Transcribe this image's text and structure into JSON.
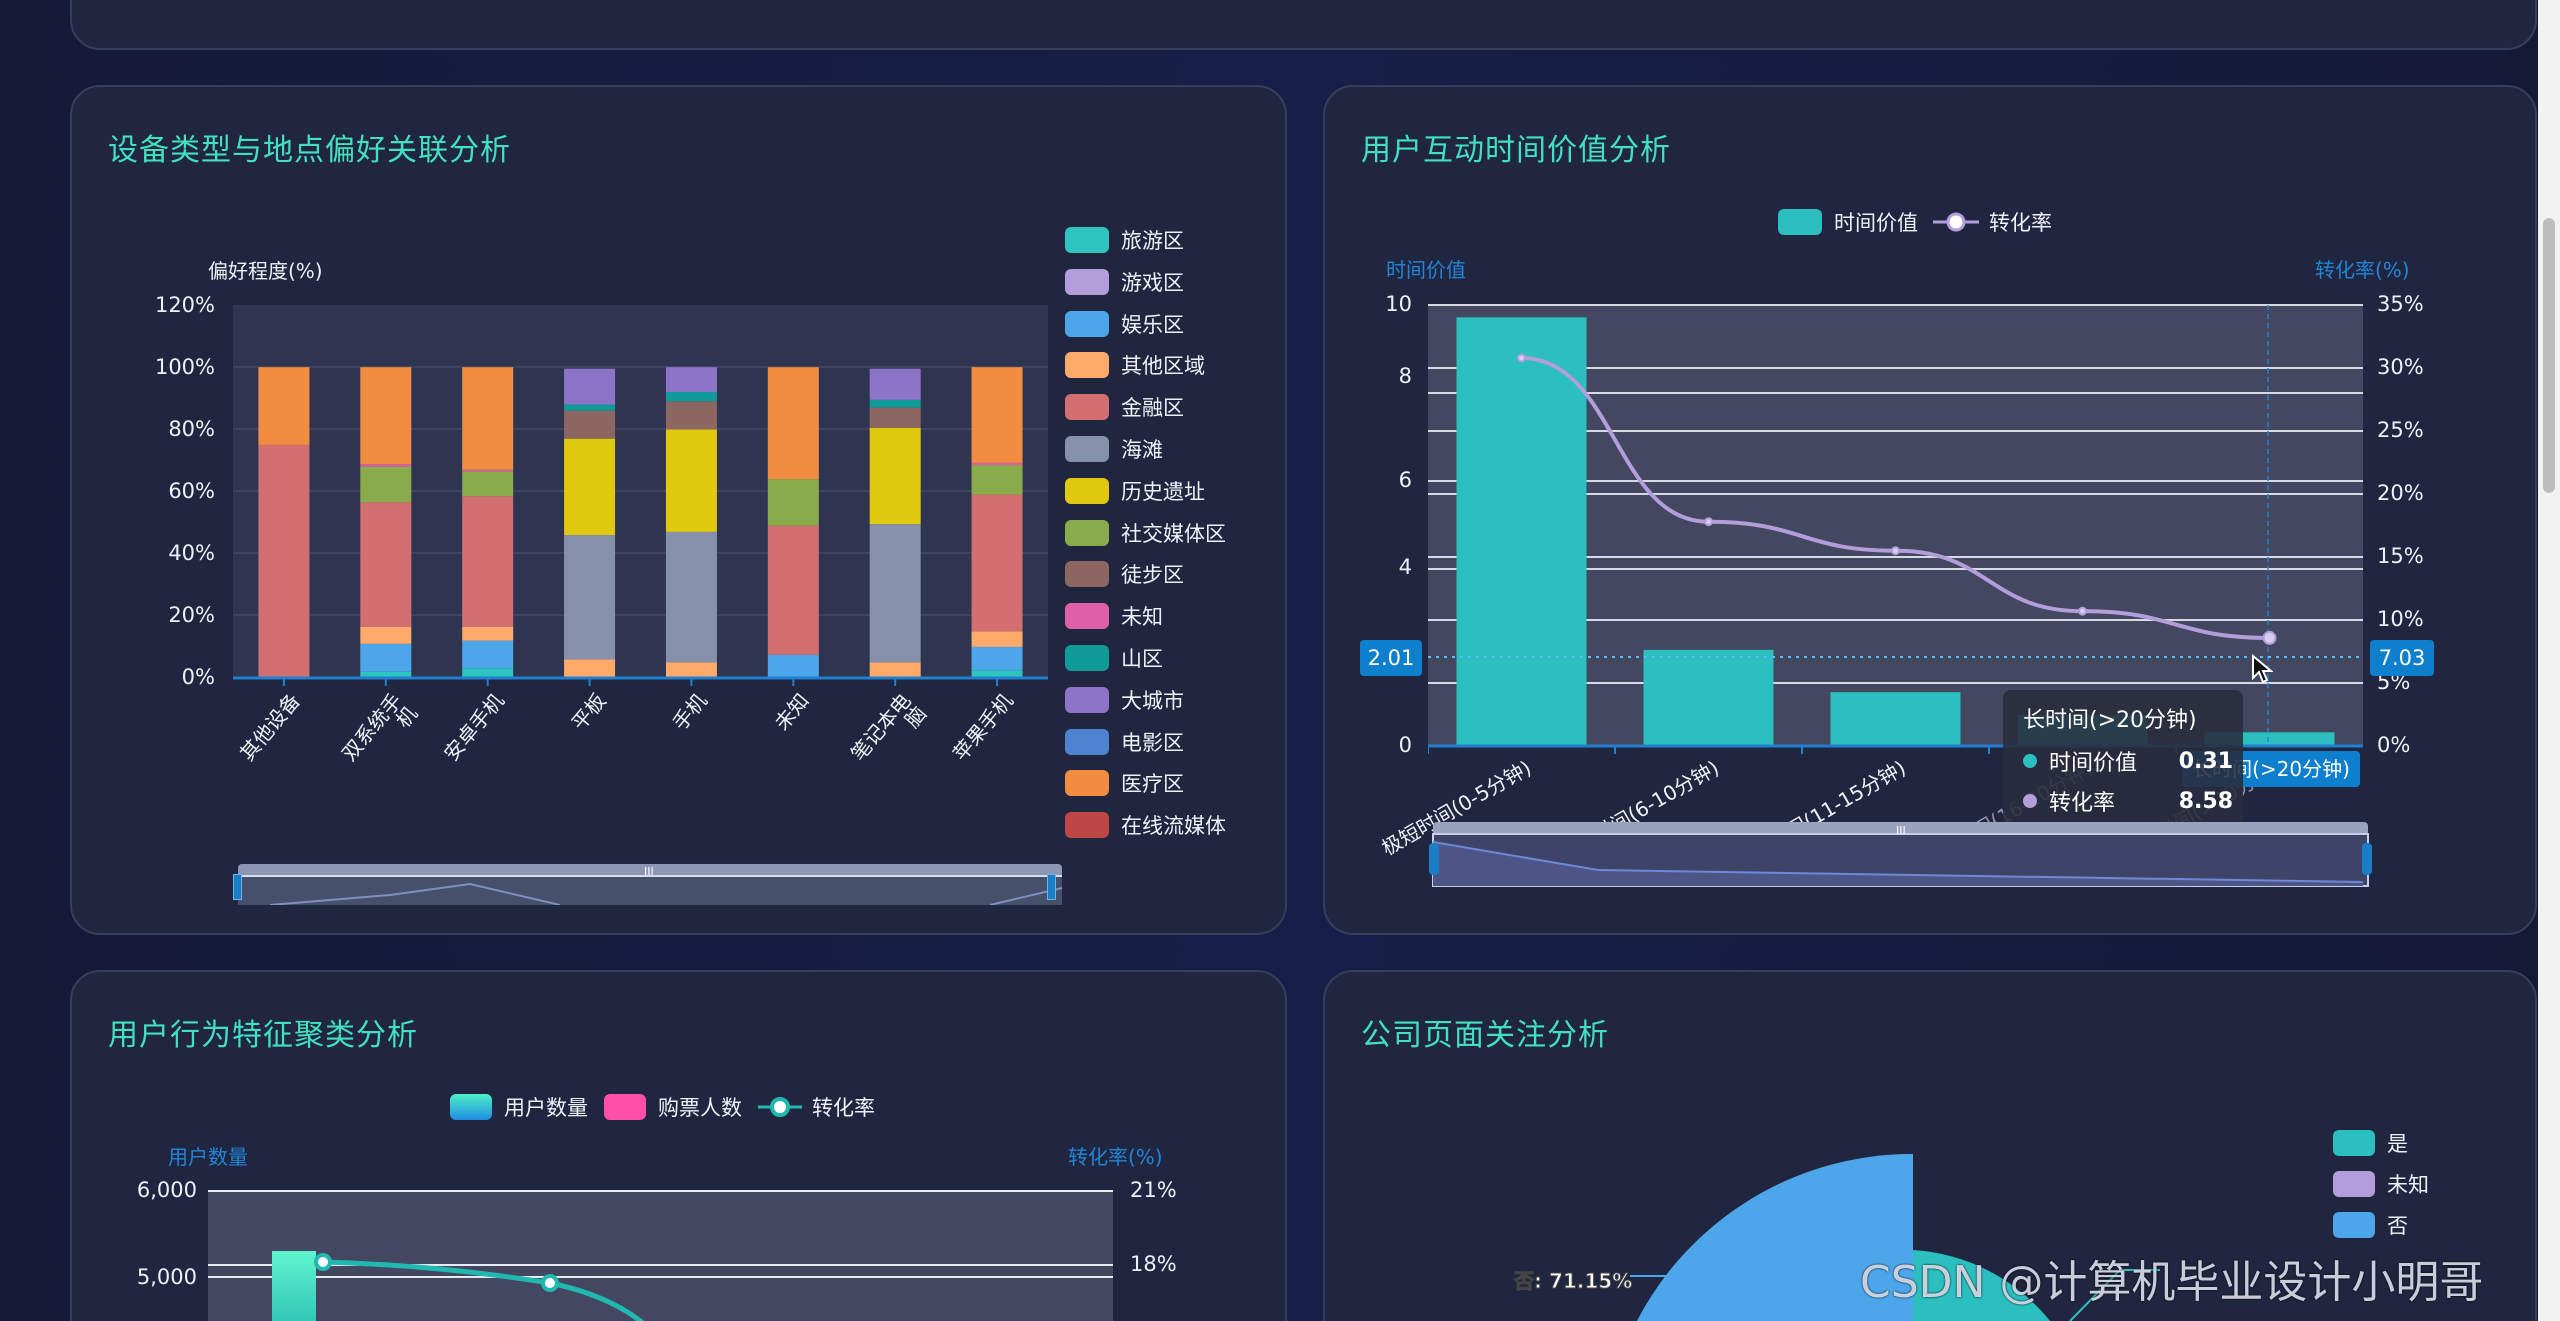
{
  "cards": {
    "device_location": {
      "title": "设备类型与地点偏好关联分析"
    },
    "interaction_time": {
      "title": "用户互动时间价值分析"
    },
    "behavior_cluster": {
      "title": "用户行为特征聚类分析"
    },
    "company_page": {
      "title": "公司页面关注分析"
    }
  },
  "chart_data": [
    {
      "id": "device_location",
      "type": "bar",
      "stacked": true,
      "title": "设备类型与地点偏好关联分析",
      "ylabel": "偏好程度(%)",
      "ylim": [
        0,
        120
      ],
      "yticks": [
        "0%",
        "20%",
        "40%",
        "60%",
        "80%",
        "100%",
        "120%"
      ],
      "categories": [
        "其他设备",
        "双系统手机",
        "安卓手机",
        "平板",
        "手机",
        "未知",
        "笔记本电脑",
        "苹果手机"
      ],
      "legend_position": "right",
      "series": [
        {
          "name": "旅游区",
          "color": "#2ec4c0",
          "values": [
            0,
            2,
            3,
            0,
            0,
            0,
            0,
            2.5
          ]
        },
        {
          "name": "游戏区",
          "color": "#b39ddb",
          "values": [
            0,
            0,
            0,
            0,
            0,
            0,
            0,
            0
          ]
        },
        {
          "name": "娱乐区",
          "color": "#4ea6ea",
          "values": [
            0,
            9,
            9,
            0,
            0,
            7.5,
            0,
            7.5
          ]
        },
        {
          "name": "其他区域",
          "color": "#ffa96b",
          "values": [
            0,
            5.5,
            4.5,
            6,
            5,
            0,
            5,
            5
          ]
        },
        {
          "name": "金融区",
          "color": "#d36f70",
          "values": [
            75,
            40,
            42,
            0,
            0,
            41.5,
            0,
            44
          ]
        },
        {
          "name": "海滩",
          "color": "#8590aa",
          "values": [
            0,
            0,
            0,
            40,
            42,
            0,
            44.5,
            0
          ]
        },
        {
          "name": "历史遗址",
          "color": "#e0c80e",
          "values": [
            0,
            0,
            0,
            31,
            33,
            0,
            31,
            0
          ]
        },
        {
          "name": "社交媒体区",
          "color": "#8aab4b",
          "values": [
            0,
            11.5,
            8,
            0,
            0,
            15,
            0,
            9.5
          ]
        },
        {
          "name": "徒步区",
          "color": "#8c6660",
          "values": [
            0,
            0,
            0,
            9,
            9,
            0,
            6.5,
            0
          ]
        },
        {
          "name": "未知",
          "color": "#e05fa8",
          "values": [
            0,
            0.8,
            0.5,
            0,
            0,
            0,
            0,
            0.7
          ]
        },
        {
          "name": "山区",
          "color": "#109a98",
          "values": [
            0,
            0,
            0,
            2,
            3,
            0,
            2.5,
            0
          ]
        },
        {
          "name": "大城市",
          "color": "#8d74c9",
          "values": [
            0,
            0,
            0,
            11.5,
            8,
            0,
            10,
            0
          ]
        },
        {
          "name": "电影区",
          "color": "#4f82d0",
          "values": [
            0,
            0,
            0,
            0,
            0,
            0,
            0,
            0
          ]
        },
        {
          "name": "医疗区",
          "color": "#f28c40",
          "values": [
            25,
            31.2,
            33,
            0,
            0,
            36,
            0,
            30.8
          ]
        },
        {
          "name": "在线流媒体",
          "color": "#be4646",
          "values": [
            0,
            0,
            0,
            0,
            0,
            0,
            0,
            0
          ]
        }
      ],
      "datazoom": {
        "start": 0,
        "end": 100
      }
    },
    {
      "id": "interaction_time",
      "type": "bar+line",
      "title": "用户互动时间价值分析",
      "categories": [
        "极短时间(0-5分钟)",
        "短时间(6-10分钟)",
        "中等时间(11-15分钟)",
        "较长时间(16-20分钟)",
        "长时间(>20分钟)"
      ],
      "legend_position": "top",
      "y_left": {
        "name": "时间价值",
        "ylim": [
          0,
          10
        ],
        "ticks": [
          "0",
          "2",
          "4",
          "6",
          "8",
          "10"
        ]
      },
      "y_right": {
        "name": "转化率(%)",
        "ylim": [
          0,
          35
        ],
        "ticks": [
          "0%",
          "5%",
          "10%",
          "15%",
          "20%",
          "25%",
          "30%",
          "35%"
        ]
      },
      "series": [
        {
          "name": "时间价值",
          "type": "bar",
          "color": "#2bbfbf",
          "values": [
            9.72,
            2.18,
            1.22,
            0.7,
            0.31
          ]
        },
        {
          "name": "转化率",
          "type": "line",
          "color": "#b39ddb",
          "values": [
            30.8,
            17.8,
            15.5,
            10.7,
            8.58
          ]
        }
      ],
      "axis_pointer": {
        "left_value": "2.01",
        "right_value": "7.03",
        "category_label": "长时间(>20分钟)"
      },
      "tooltip": {
        "title": "长时间(>20分钟)",
        "rows": [
          {
            "label": "时间价值",
            "value": "0.31",
            "color": "#2bbfbf"
          },
          {
            "label": "转化率",
            "value": "8.58",
            "color": "#b39ddb"
          }
        ]
      },
      "datazoom": {
        "start": 0,
        "end": 100
      }
    },
    {
      "id": "behavior_cluster",
      "type": "bar+line",
      "title": "用户行为特征聚类分析",
      "legend_position": "top",
      "y_left": {
        "name": "用户数量",
        "ticks_visible": [
          "5,000",
          "6,000"
        ]
      },
      "y_right": {
        "name": "转化率(%)",
        "ticks_visible": [
          "18%",
          "21%"
        ]
      },
      "series": [
        {
          "name": "用户数量",
          "type": "bar",
          "color": "#4ef0c8",
          "values_visible": [
            5300
          ]
        },
        {
          "name": "购票人数",
          "type": "bar",
          "color": "#ff4fa8",
          "values_visible": []
        },
        {
          "name": "转化率",
          "type": "line",
          "color": "#20b8b0",
          "values_visible": [
            17.8,
            16.6
          ]
        }
      ]
    },
    {
      "id": "company_page",
      "type": "pie",
      "title": "公司页面关注分析",
      "legend_position": "right",
      "series": [
        {
          "name": "是",
          "color": "#2bbfbf"
        },
        {
          "name": "未知",
          "color": "#b39ddb"
        },
        {
          "name": "否",
          "color": "#4ea6ea",
          "value_pct": 71.15
        }
      ],
      "labels": [
        "否: 71.15%"
      ]
    }
  ],
  "chart1": {
    "ylabel": "偏好程度(%)",
    "yticks": [
      "120%",
      "100%",
      "80%",
      "60%",
      "40%",
      "20%",
      "0%"
    ],
    "xlabels": [
      "其他设备",
      "双系统手\n机",
      "安卓手机",
      "平板",
      "手机",
      "未知",
      "笔记本电\n脑",
      "苹果手机"
    ],
    "legend": [
      "旅游区",
      "游戏区",
      "娱乐区",
      "其他区域",
      "金融区",
      "海滩",
      "历史遗址",
      "社交媒体区",
      "徒步区",
      "未知",
      "山区",
      "大城市",
      "电影区",
      "医疗区",
      "在线流媒体"
    ]
  },
  "chart2": {
    "legend": {
      "bar": "时间价值",
      "line": "转化率"
    },
    "y_left_name": "时间价值",
    "y_right_name": "转化率(%)",
    "y_left_ticks": [
      "10",
      "8",
      "6",
      "4",
      "0"
    ],
    "y_right_ticks": [
      "35%",
      "30%",
      "25%",
      "20%",
      "15%",
      "10%",
      "5%",
      "0%"
    ],
    "xlabels": [
      "极短时间(0-5分钟)",
      "短时间(6-10分钟)",
      "中等时间(11-15分钟)",
      "较长时间(16-20分钟)",
      "长时间(>20分钟)"
    ],
    "pointer_left": "2.01",
    "pointer_right": "7.03",
    "pointer_x_label": "长时间(>20分钟)",
    "tooltip_title": "长时间(>20分钟)",
    "tooltip_row1_label": "时间价值",
    "tooltip_row1_value": "0.31",
    "tooltip_row2_label": "转化率",
    "tooltip_row2_value": "8.58"
  },
  "chart3": {
    "legend": {
      "bar1": "用户数量",
      "bar2": "购票人数",
      "line": "转化率"
    },
    "y_left_name": "用户数量",
    "y_right_name": "转化率(%)",
    "y_left_ticks": [
      "6,000",
      "5,000"
    ],
    "y_right_ticks": [
      "21%",
      "18%"
    ]
  },
  "chart4": {
    "legend": [
      "是",
      "未知",
      "否"
    ],
    "label_no": "否: 71.15%"
  },
  "watermark": "CSDN @计算机毕业设计小明哥"
}
